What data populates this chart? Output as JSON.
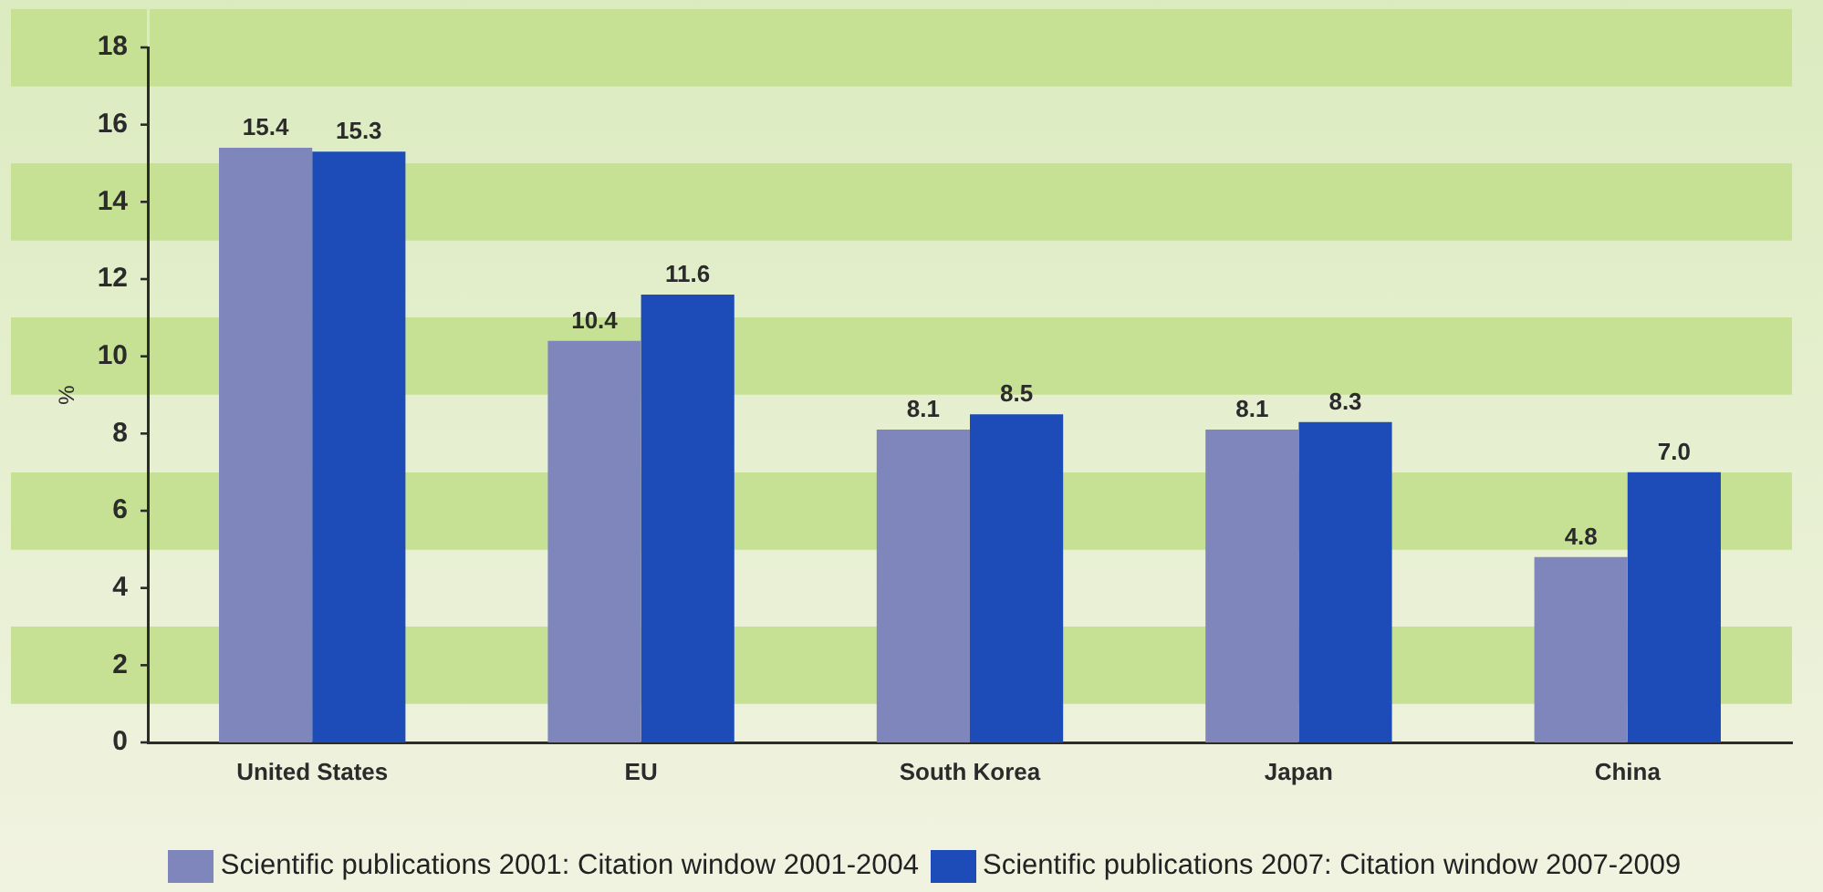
{
  "chart_data": {
    "type": "bar",
    "ylabel": "%",
    "categories": [
      "United States",
      "EU",
      "South Korea",
      "Japan",
      "China"
    ],
    "series": [
      {
        "name": "Scientific publications 2001: Citation window 2001-2004",
        "color": "#7f86bb",
        "values": [
          15.4,
          10.4,
          8.1,
          8.1,
          4.8
        ],
        "value_labels": [
          "15.4",
          "10.4",
          "8.1",
          "8.1",
          "4.8"
        ]
      },
      {
        "name": "Scientific publications 2007: Citation window 2007-2009",
        "color": "#1d4bb8",
        "values": [
          15.3,
          11.6,
          8.5,
          8.3,
          7.0
        ],
        "value_labels": [
          "15.3",
          "11.6",
          "8.5",
          "8.3",
          "7.0"
        ]
      }
    ],
    "ylim": [
      0,
      18
    ],
    "yticks": [
      0,
      2,
      4,
      6,
      8,
      10,
      12,
      14,
      16,
      18
    ],
    "grid": "y",
    "legend": "bottom"
  }
}
